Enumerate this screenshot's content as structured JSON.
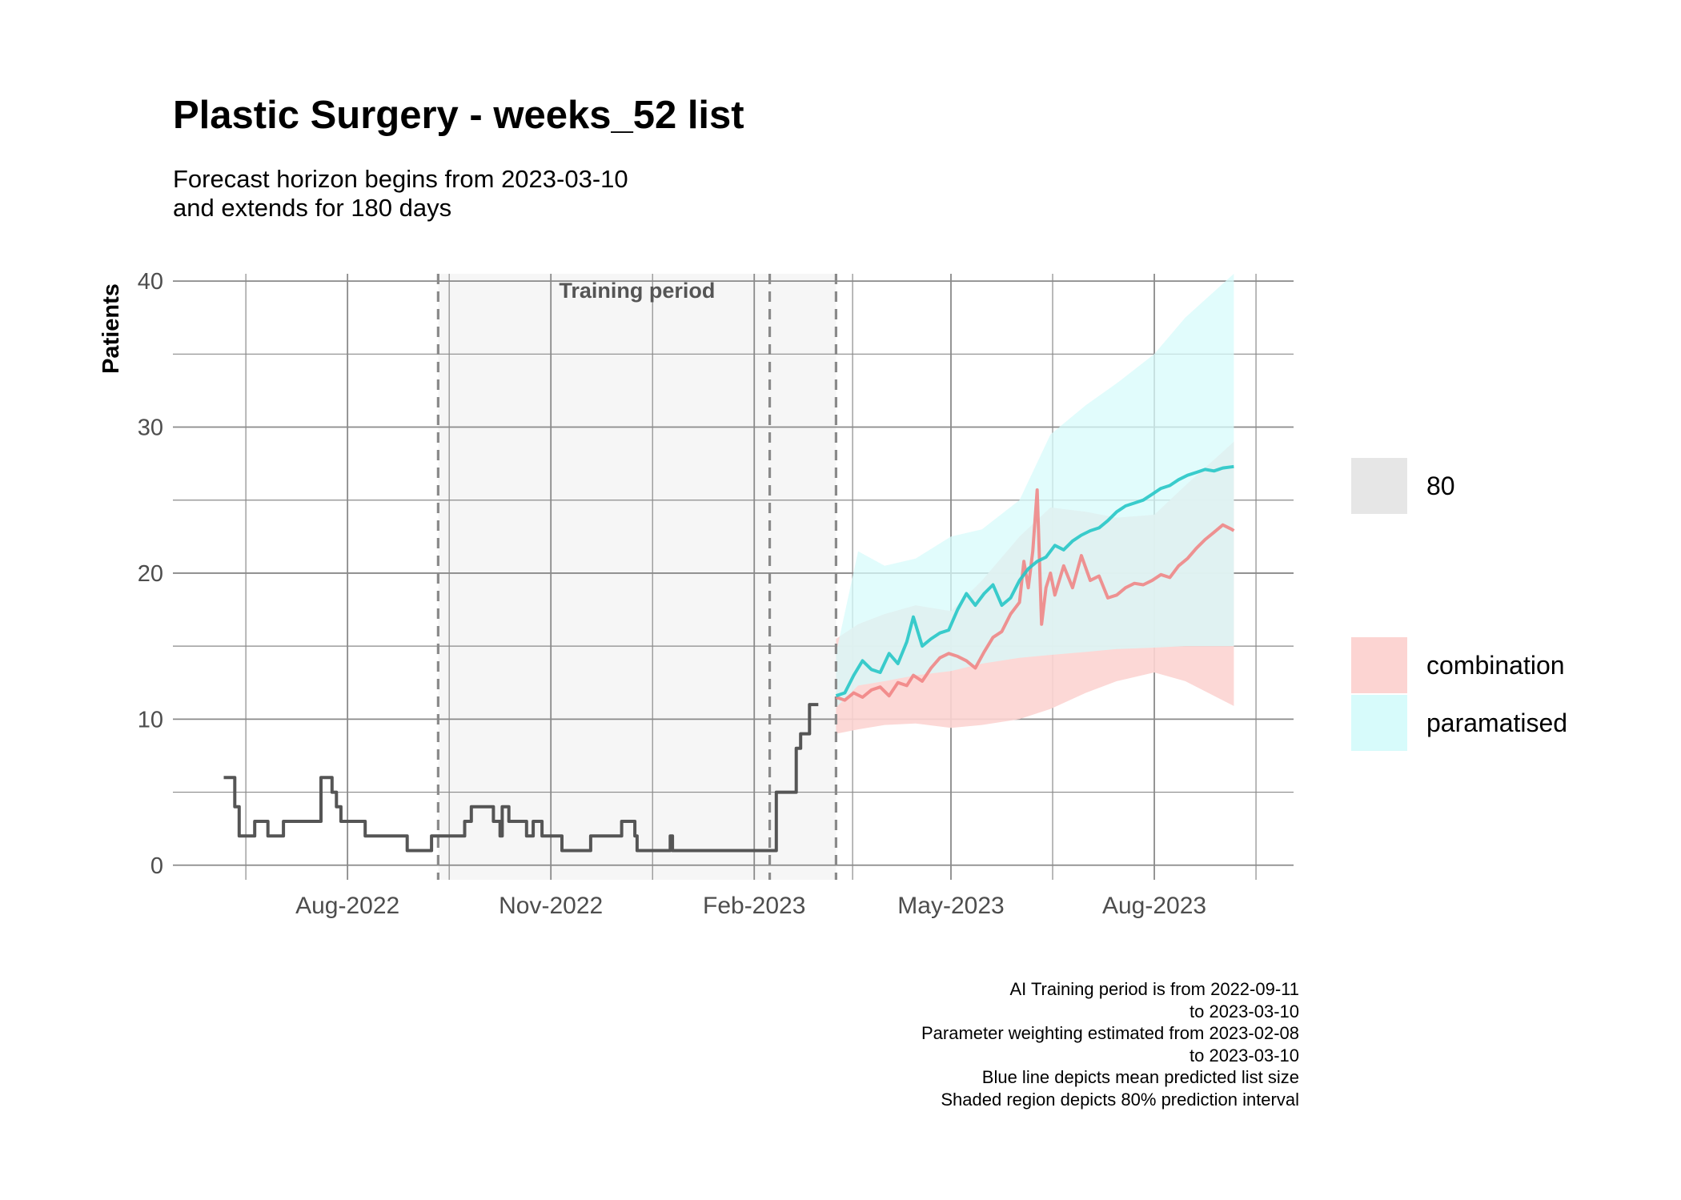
{
  "title": "Plastic Surgery - weeks_52 list",
  "subtitle": [
    "Forecast horizon begins from 2023-03-10",
    "and extends for 180 days"
  ],
  "caption": [
    "AI Training period is from 2022-09-11",
    "to 2023-03-10",
    "Parameter weighting estimated from 2023-02-08",
    "to 2023-03-10",
    "Blue line depicts mean predicted list size",
    "Shaded region depicts 80% prediction interval"
  ],
  "colors": {
    "history": "#555555",
    "combination": "#f08080",
    "combination_band": "#fcd4d2",
    "paramatised": "#27c7c7",
    "paramatised_band": "#d7fbfb",
    "overlap_band": "#d9eeee",
    "training_shade": "#f6f6f6",
    "grid": "#8a8a8a"
  },
  "chart_data": {
    "type": "line",
    "ylabel": "Patients",
    "xlabel": "",
    "ylim": [
      -1,
      40.5
    ],
    "xlim": [
      "2022-05-14",
      "2023-10-03"
    ],
    "yticks": [
      0,
      10,
      20,
      30,
      40
    ],
    "xticks": [
      "Aug-2022",
      "Nov-2022",
      "Feb-2023",
      "May-2023",
      "Aug-2023"
    ],
    "xtick_dates": [
      "2022-08-01",
      "2022-11-01",
      "2023-02-01",
      "2023-05-01",
      "2023-08-01"
    ],
    "grid": true,
    "annotations": {
      "training_period_label": "Training period",
      "training_shade": [
        "2022-09-11",
        "2023-03-10"
      ],
      "vlines": [
        "2022-09-11",
        "2023-02-08",
        "2023-03-10"
      ]
    },
    "legend": {
      "position": "right",
      "groups": [
        {
          "entries": [
            {
              "label": "80",
              "color_key": "legend_grey"
            }
          ]
        },
        {
          "entries": [
            {
              "label": "combination",
              "color_key": "combination_band"
            },
            {
              "label": "paramatised",
              "color_key": "paramatised_band"
            }
          ]
        }
      ]
    },
    "series": [
      {
        "name": "history",
        "x": [
          "2022-06-06",
          "2022-06-09",
          "2022-06-11",
          "2022-06-12",
          "2022-06-13",
          "2022-06-17",
          "2022-06-20",
          "2022-06-25",
          "2022-06-26",
          "2022-06-27",
          "2022-07-03",
          "2022-07-04",
          "2022-07-12",
          "2022-07-18",
          "2022-07-20",
          "2022-07-24",
          "2022-07-25",
          "2022-07-27",
          "2022-07-29",
          "2022-08-01",
          "2022-08-06",
          "2022-08-09",
          "2022-08-28",
          "2022-09-03",
          "2022-09-08",
          "2022-09-13",
          "2022-09-18",
          "2022-09-23",
          "2022-09-24",
          "2022-09-26",
          "2022-09-29",
          "2022-10-03",
          "2022-10-06",
          "2022-10-09",
          "2022-10-10",
          "2022-10-13",
          "2022-10-18",
          "2022-10-21",
          "2022-10-23",
          "2022-10-24",
          "2022-10-28",
          "2022-11-06",
          "2022-11-11",
          "2022-11-15",
          "2022-11-18",
          "2022-11-19",
          "2022-11-22",
          "2022-12-03",
          "2022-12-08",
          "2022-12-09",
          "2022-12-10",
          "2022-12-11",
          "2022-12-14",
          "2022-12-23",
          "2022-12-25",
          "2022-12-26",
          "2022-12-27",
          "2023-01-20",
          "2023-02-10",
          "2023-02-11",
          "2023-02-18",
          "2023-02-20",
          "2023-02-22",
          "2023-02-24",
          "2023-02-26",
          "2023-02-28",
          "2023-03-02"
        ],
        "values": [
          6,
          6,
          4,
          4,
          2,
          2,
          3,
          3,
          2,
          2,
          3,
          3,
          3,
          3,
          6,
          6,
          5,
          4,
          3,
          3,
          3,
          2,
          1,
          1,
          2,
          2,
          2,
          3,
          3,
          4,
          4,
          4,
          3,
          2,
          4,
          3,
          3,
          2,
          2,
          3,
          2,
          1,
          1,
          1,
          1,
          2,
          2,
          3,
          3,
          2,
          1,
          1,
          1,
          1,
          2,
          1,
          1,
          1,
          1,
          5,
          5,
          8,
          9,
          9,
          11,
          11,
          11
        ]
      },
      {
        "name": "combination",
        "x": [
          "2023-03-10",
          "2023-03-14",
          "2023-03-18",
          "2023-03-22",
          "2023-03-26",
          "2023-03-30",
          "2023-04-03",
          "2023-04-07",
          "2023-04-11",
          "2023-04-14",
          "2023-04-18",
          "2023-04-22",
          "2023-04-26",
          "2023-04-30",
          "2023-05-04",
          "2023-05-08",
          "2023-05-12",
          "2023-05-16",
          "2023-05-20",
          "2023-05-24",
          "2023-05-28",
          "2023-06-01",
          "2023-06-03",
          "2023-06-05",
          "2023-06-07",
          "2023-06-09",
          "2023-06-11",
          "2023-06-13",
          "2023-06-15",
          "2023-06-17",
          "2023-06-21",
          "2023-06-25",
          "2023-06-29",
          "2023-07-03",
          "2023-07-07",
          "2023-07-11",
          "2023-07-15",
          "2023-07-19",
          "2023-07-23",
          "2023-07-27",
          "2023-07-31",
          "2023-08-04",
          "2023-08-08",
          "2023-08-12",
          "2023-08-16",
          "2023-08-20",
          "2023-08-24",
          "2023-08-28",
          "2023-09-01",
          "2023-09-05",
          "2023-09-06"
        ],
        "values": [
          11.5,
          11.3,
          11.8,
          11.5,
          12.0,
          12.2,
          11.6,
          12.5,
          12.3,
          13.0,
          12.6,
          13.5,
          14.2,
          14.5,
          14.3,
          14.0,
          13.5,
          14.6,
          15.6,
          16.0,
          17.2,
          18.0,
          20.8,
          19.0,
          21.5,
          25.7,
          16.5,
          19.0,
          20.0,
          18.5,
          20.5,
          19.0,
          21.2,
          19.5,
          19.8,
          18.3,
          18.5,
          19.0,
          19.3,
          19.2,
          19.5,
          19.9,
          19.7,
          20.5,
          21.0,
          21.7,
          22.3,
          22.8,
          23.3,
          23.0,
          22.9
        ]
      },
      {
        "name": "paramatised",
        "x": [
          "2023-03-10",
          "2023-03-14",
          "2023-03-18",
          "2023-03-22",
          "2023-03-26",
          "2023-03-30",
          "2023-04-03",
          "2023-04-07",
          "2023-04-11",
          "2023-04-14",
          "2023-04-18",
          "2023-04-22",
          "2023-04-26",
          "2023-04-30",
          "2023-05-04",
          "2023-05-08",
          "2023-05-12",
          "2023-05-16",
          "2023-05-20",
          "2023-05-24",
          "2023-05-28",
          "2023-06-01",
          "2023-06-05",
          "2023-06-09",
          "2023-06-13",
          "2023-06-17",
          "2023-06-21",
          "2023-06-25",
          "2023-06-29",
          "2023-07-03",
          "2023-07-07",
          "2023-07-11",
          "2023-07-15",
          "2023-07-19",
          "2023-07-23",
          "2023-07-27",
          "2023-07-31",
          "2023-08-04",
          "2023-08-08",
          "2023-08-12",
          "2023-08-16",
          "2023-08-20",
          "2023-08-24",
          "2023-08-28",
          "2023-09-01",
          "2023-09-06"
        ],
        "values": [
          11.6,
          11.8,
          13.0,
          14.0,
          13.4,
          13.2,
          14.5,
          13.8,
          15.3,
          17.0,
          15.0,
          15.5,
          15.9,
          16.1,
          17.5,
          18.6,
          17.8,
          18.6,
          19.2,
          17.8,
          18.3,
          19.5,
          20.3,
          20.8,
          21.1,
          21.9,
          21.6,
          22.2,
          22.6,
          22.9,
          23.1,
          23.6,
          24.2,
          24.6,
          24.8,
          25.0,
          25.4,
          25.8,
          26.0,
          26.4,
          26.7,
          26.9,
          27.1,
          27.0,
          27.2,
          27.3
        ]
      },
      {
        "name": "combination_interval",
        "x": [
          "2023-03-10",
          "2023-03-20",
          "2023-04-01",
          "2023-04-15",
          "2023-05-01",
          "2023-05-15",
          "2023-06-01",
          "2023-06-15",
          "2023-07-01",
          "2023-07-15",
          "2023-08-01",
          "2023-08-15",
          "2023-09-06"
        ],
        "lower": [
          9.0,
          9.3,
          9.6,
          9.7,
          9.4,
          9.6,
          10.0,
          10.7,
          11.8,
          12.6,
          13.2,
          12.6,
          10.9
        ],
        "upper": [
          15.5,
          16.5,
          17.2,
          17.8,
          17.4,
          19.5,
          22.5,
          24.5,
          24.2,
          23.8,
          24.0,
          26.0,
          29.0
        ]
      },
      {
        "name": "paramatised_interval",
        "x": [
          "2023-03-10",
          "2023-03-20",
          "2023-04-01",
          "2023-04-15",
          "2023-05-01",
          "2023-05-15",
          "2023-06-01",
          "2023-06-15",
          "2023-07-01",
          "2023-07-15",
          "2023-08-01",
          "2023-08-15",
          "2023-09-06"
        ],
        "lower": [
          10.8,
          12.3,
          12.6,
          13.0,
          13.3,
          13.8,
          14.2,
          14.4,
          14.6,
          14.8,
          14.9,
          15.0,
          15.0
        ],
        "upper": [
          14.5,
          21.5,
          20.5,
          21.0,
          22.5,
          23.0,
          25.0,
          29.5,
          31.5,
          33.0,
          35.0,
          37.5,
          40.5
        ]
      }
    ]
  }
}
